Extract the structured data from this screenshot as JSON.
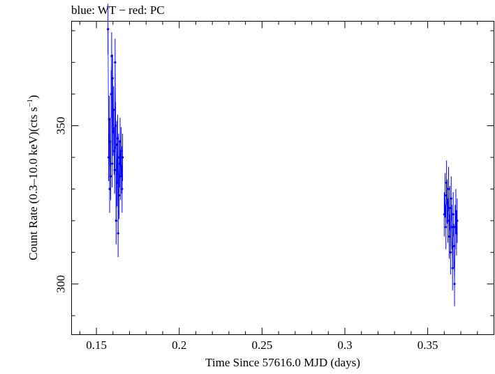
{
  "chart_data": {
    "type": "scatter",
    "title": "blue: WT − red: PC",
    "xlabel": "Time Since 57616.0 MJD (days)",
    "ylabel_main": "Count Rate (0.3–10.0 keV)(cts s",
    "ylabel_sup": "−1",
    "ylabel_close": ")",
    "xlim": [
      0.135,
      0.39
    ],
    "ylim": [
      284,
      383
    ],
    "x_ticks": [
      0.15,
      0.2,
      0.25,
      0.3,
      0.35
    ],
    "x_tick_labels": [
      "0.15",
      "0.2",
      "0.25",
      "0.3",
      "0.35"
    ],
    "y_ticks": [
      300,
      350
    ],
    "y_tick_labels": [
      "300",
      "350"
    ],
    "grid": false,
    "colors": {
      "wt": "#0000ff",
      "axes": "#000000"
    },
    "series": [
      {
        "name": "WT",
        "color": "#0000ff",
        "points": [
          [
            0.157,
            380.5,
            8.0
          ],
          [
            0.1574,
            340.0,
            7.5
          ],
          [
            0.1577,
            352.0,
            7.5
          ],
          [
            0.158,
            330.0,
            7.5
          ],
          [
            0.1583,
            345.0,
            7.5
          ],
          [
            0.1586,
            334.0,
            7.5
          ],
          [
            0.1589,
            360.0,
            7.5
          ],
          [
            0.1592,
            372.0,
            7.5
          ],
          [
            0.1595,
            338.0,
            7.5
          ],
          [
            0.1598,
            365.0,
            7.5
          ],
          [
            0.1601,
            348.0,
            7.5
          ],
          [
            0.1604,
            355.0,
            7.5
          ],
          [
            0.1607,
            342.0,
            7.5
          ],
          [
            0.161,
            336.0,
            7.5
          ],
          [
            0.1613,
            370.0,
            7.5
          ],
          [
            0.1616,
            350.0,
            7.5
          ],
          [
            0.1619,
            320.0,
            7.5
          ],
          [
            0.1622,
            344.0,
            7.5
          ],
          [
            0.1625,
            332.0,
            7.5
          ],
          [
            0.1628,
            346.0,
            7.5
          ],
          [
            0.1631,
            316.0,
            7.5
          ],
          [
            0.1634,
            340.0,
            7.5
          ],
          [
            0.1637,
            328.0,
            7.5
          ],
          [
            0.164,
            338.0,
            7.5
          ],
          [
            0.1643,
            345.0,
            7.5
          ],
          [
            0.1646,
            334.0,
            7.5
          ],
          [
            0.1649,
            342.0,
            7.5
          ],
          [
            0.1652,
            336.0,
            7.5
          ],
          [
            0.1655,
            330.0,
            7.5
          ],
          [
            0.1658,
            340.0,
            7.5
          ],
          [
            0.36,
            322.0,
            7.0
          ],
          [
            0.3605,
            328.0,
            7.0
          ],
          [
            0.361,
            318.0,
            7.0
          ],
          [
            0.3614,
            332.0,
            7.0
          ],
          [
            0.3618,
            326.0,
            7.0
          ],
          [
            0.3622,
            320.0,
            7.0
          ],
          [
            0.3626,
            330.0,
            7.0
          ],
          [
            0.363,
            315.0,
            7.0
          ],
          [
            0.3634,
            324.0,
            7.0
          ],
          [
            0.3638,
            310.0,
            7.0
          ],
          [
            0.3642,
            327.0,
            7.0
          ],
          [
            0.3646,
            318.0,
            7.0
          ],
          [
            0.365,
            305.0,
            7.0
          ],
          [
            0.3654,
            322.0,
            7.0
          ],
          [
            0.3658,
            312.0,
            7.0
          ],
          [
            0.3662,
            300.0,
            7.0
          ],
          [
            0.3666,
            318.0,
            7.0
          ],
          [
            0.367,
            323.0,
            7.0
          ],
          [
            0.3674,
            316.0,
            7.0
          ],
          [
            0.3678,
            320.0,
            7.0
          ]
        ]
      }
    ]
  }
}
